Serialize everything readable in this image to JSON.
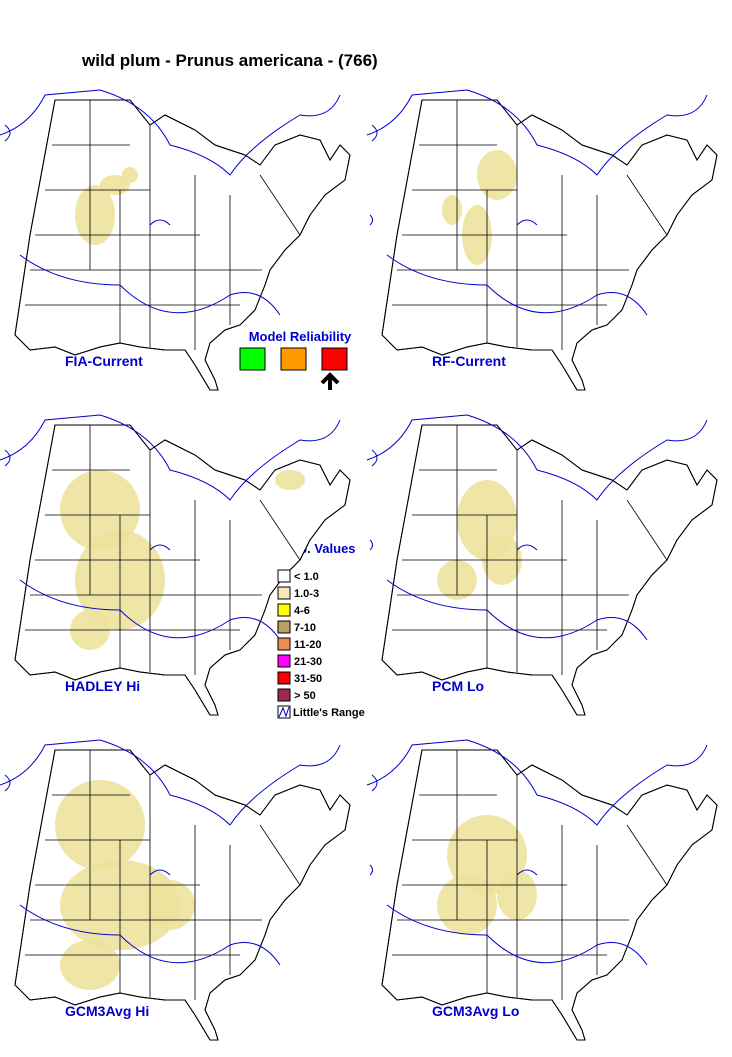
{
  "title": "wild plum - Prunus americana - (766)",
  "panels": [
    {
      "label": "FIA-Current"
    },
    {
      "label": "RF-Current"
    },
    {
      "label": "HADLEY Hi"
    },
    {
      "label": "PCM Lo"
    },
    {
      "label": "GCM3Avg Hi"
    },
    {
      "label": "GCM3Avg Lo"
    }
  ],
  "model_reliability": {
    "title": "Model Reliability",
    "colors": [
      "#00ff00",
      "#ff9900",
      "#ff0000"
    ]
  },
  "legend": {
    "title": "Imp. Values",
    "items": [
      {
        "label": "< 1.0",
        "color": "#ffffff"
      },
      {
        "label": "1.0-3",
        "color": "#f8e8b8"
      },
      {
        "label": "4-6",
        "color": "#ffff00"
      },
      {
        "label": "7-10",
        "color": "#b8a060"
      },
      {
        "label": "11-20",
        "color": "#f08c50"
      },
      {
        "label": "21-30",
        "color": "#ff00ff"
      },
      {
        "label": "31-50",
        "color": "#ff0000"
      },
      {
        "label": "> 50",
        "color": "#a02850"
      }
    ],
    "range_label": "Little's Range"
  }
}
